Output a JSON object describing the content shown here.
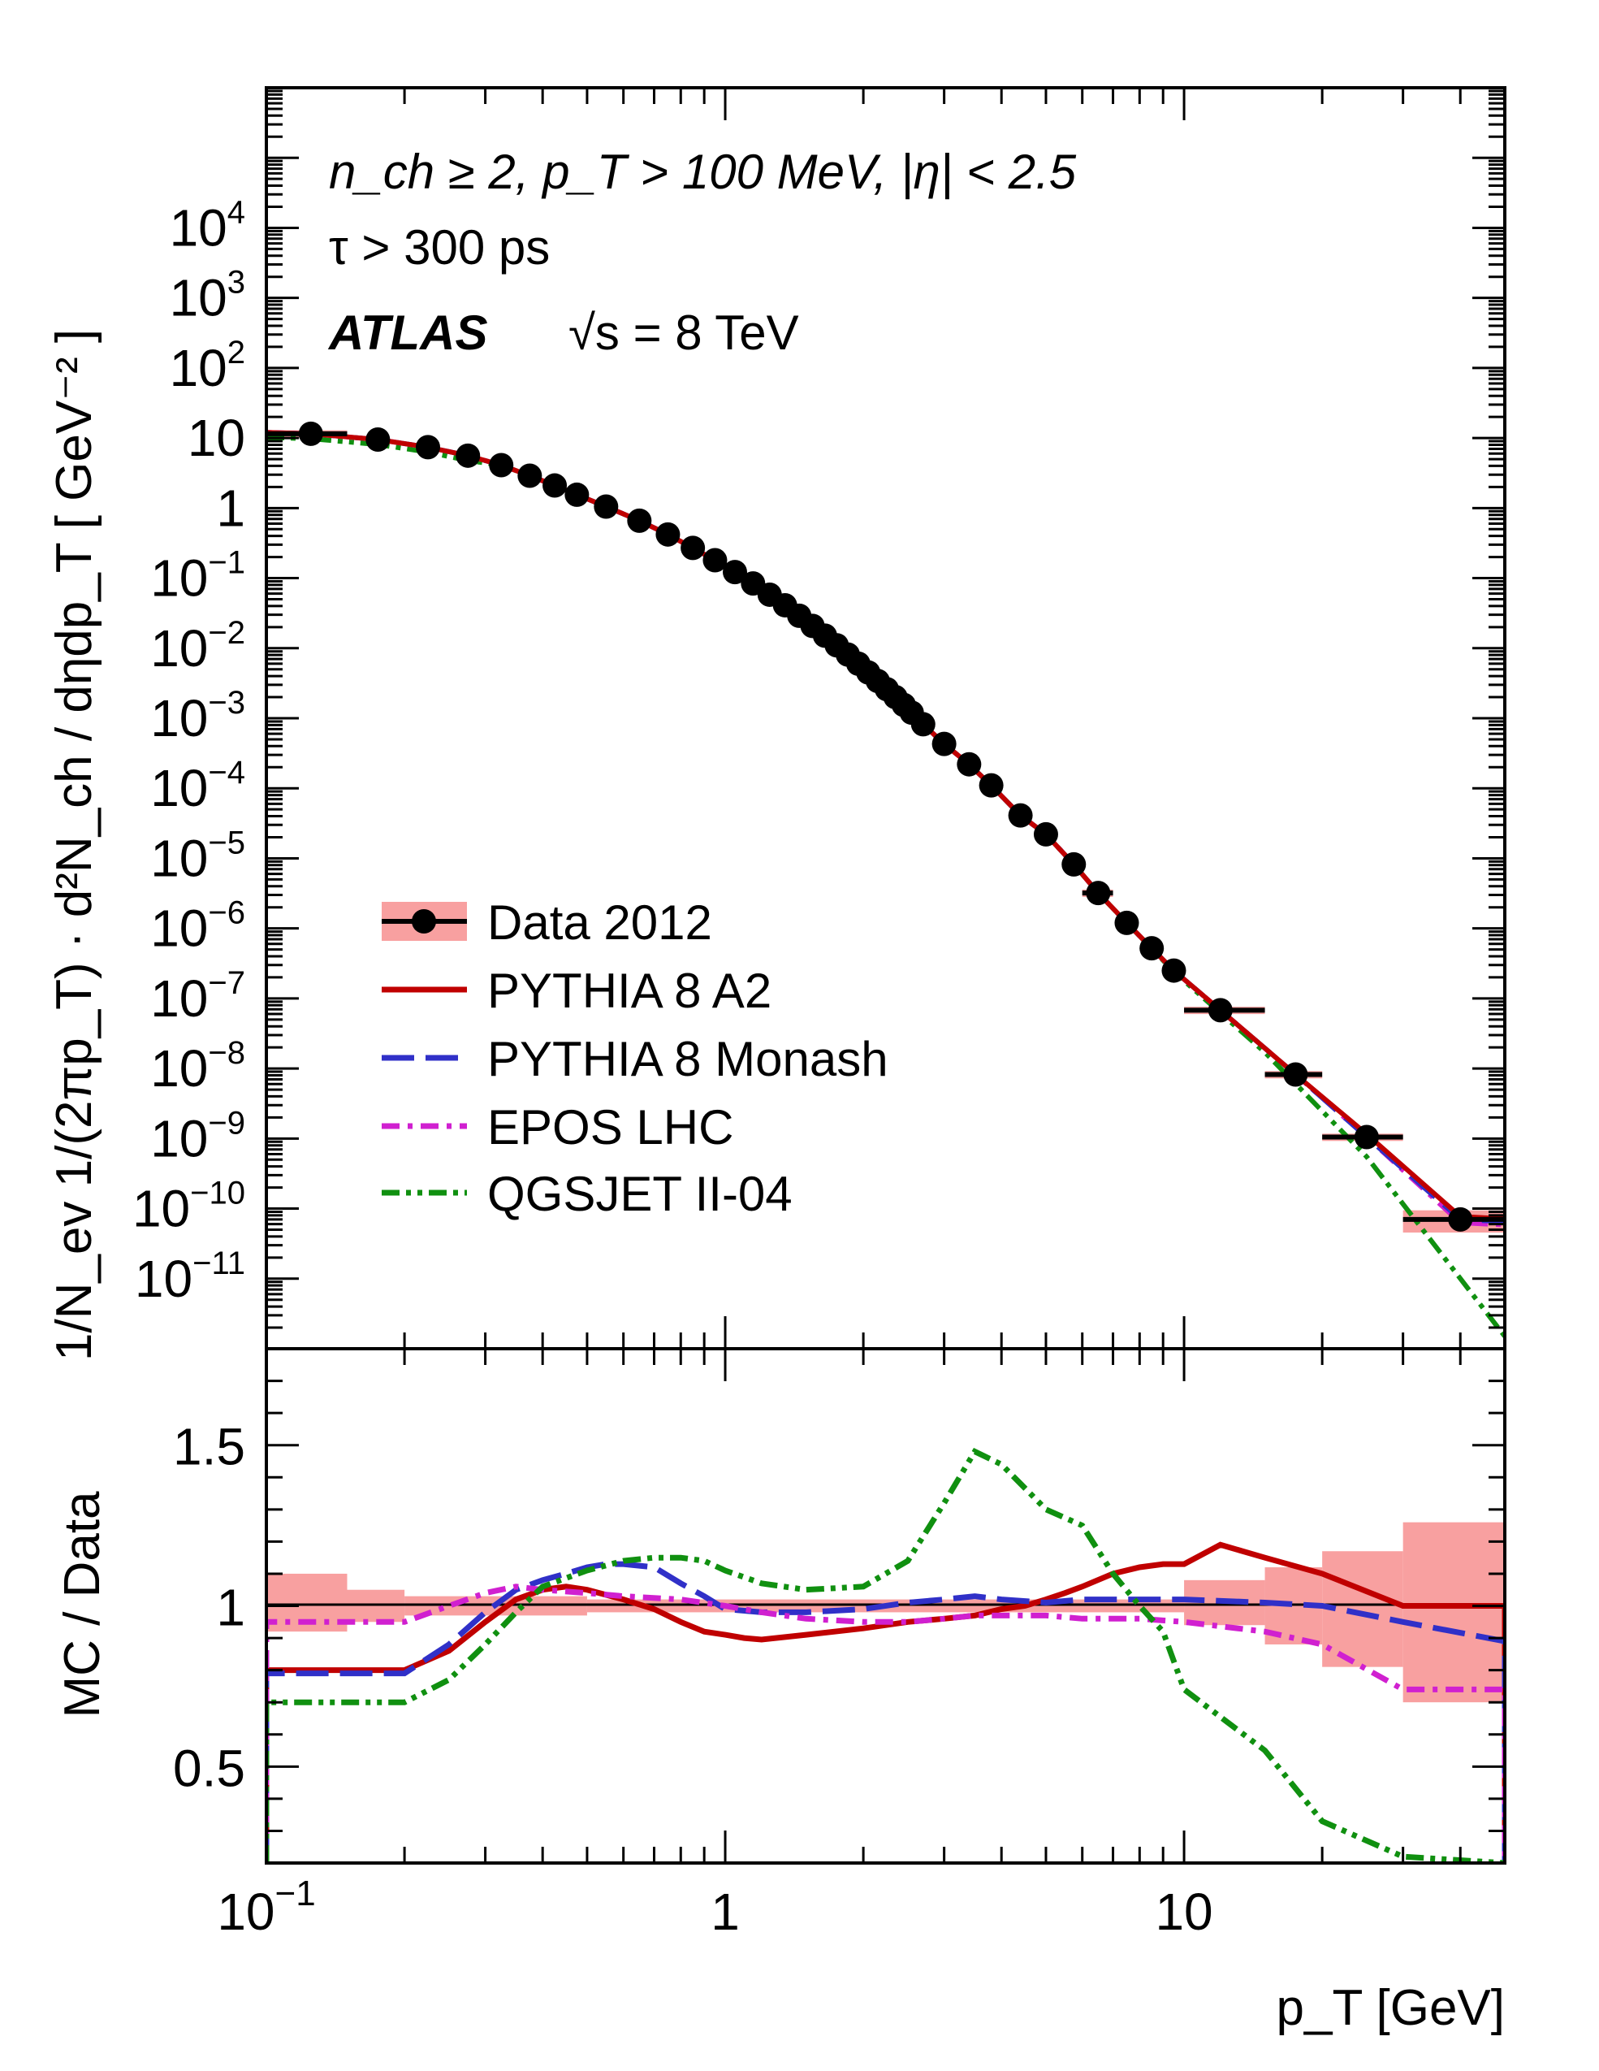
{
  "chart_data": [
    {
      "panel": "main",
      "type": "line",
      "x_scale": "log",
      "y_scale": "log",
      "xlim": [
        0.1,
        50
      ],
      "ylim": [
        1e-12,
        1000000.0
      ],
      "ylabel": "1/N_ev 1/(2πp_T) · d²N_ch / dηdp_T [ GeV⁻² ]",
      "annotations": {
        "line1": "n_ch ≥ 2, p_T > 100 MeV, |η| < 2.5",
        "line2": "τ > 300 ps",
        "experiment": "ATLAS",
        "energy": "√s = 8 TeV"
      },
      "y_tick_labels": [
        "10^4",
        "10^3",
        "10^2",
        "10",
        "1",
        "10^-1",
        "10^-2",
        "10^-3",
        "10^-4",
        "10^-5",
        "10^-6",
        "10^-7",
        "10^-8",
        "10^-9",
        "10^-10",
        "10^-11"
      ],
      "legend": [
        {
          "label": "Data 2012",
          "style": "marker-band",
          "color": "#000000",
          "band": "#f8a0a0"
        },
        {
          "label": "PYTHIA 8 A2",
          "style": "solid",
          "color": "#c00000"
        },
        {
          "label": "PYTHIA 8 Monash",
          "style": "long-dash",
          "color": "#3030c8"
        },
        {
          "label": "EPOS LHC",
          "style": "dash-dot",
          "color": "#d020d0"
        },
        {
          "label": "QGSJET II-04",
          "style": "dash-dot-dot",
          "color": "#109010"
        }
      ],
      "data_points": [
        {
          "x": 0.125,
          "y": 11.5,
          "xerr": [
            0.1,
            0.15
          ]
        },
        {
          "x": 0.175,
          "y": 9.5
        },
        {
          "x": 0.225,
          "y": 7.4
        },
        {
          "x": 0.275,
          "y": 5.6
        },
        {
          "x": 0.325,
          "y": 4.1
        },
        {
          "x": 0.375,
          "y": 2.9
        },
        {
          "x": 0.425,
          "y": 2.1
        },
        {
          "x": 0.475,
          "y": 1.55
        },
        {
          "x": 0.55,
          "y": 1.05
        },
        {
          "x": 0.65,
          "y": 0.66
        },
        {
          "x": 0.75,
          "y": 0.42
        },
        {
          "x": 0.85,
          "y": 0.27
        },
        {
          "x": 0.95,
          "y": 0.18
        },
        {
          "x": 1.05,
          "y": 0.122
        },
        {
          "x": 1.15,
          "y": 0.084
        },
        {
          "x": 1.25,
          "y": 0.058
        },
        {
          "x": 1.35,
          "y": 0.041
        },
        {
          "x": 1.45,
          "y": 0.029
        },
        {
          "x": 1.55,
          "y": 0.0208
        },
        {
          "x": 1.65,
          "y": 0.0151
        },
        {
          "x": 1.75,
          "y": 0.011
        },
        {
          "x": 1.85,
          "y": 0.0081
        },
        {
          "x": 1.95,
          "y": 0.006
        },
        {
          "x": 2.05,
          "y": 0.0045
        },
        {
          "x": 2.15,
          "y": 0.0034
        },
        {
          "x": 2.25,
          "y": 0.0026
        },
        {
          "x": 2.35,
          "y": 0.002
        },
        {
          "x": 2.45,
          "y": 0.00155
        },
        {
          "x": 2.55,
          "y": 0.0012
        },
        {
          "x": 2.7,
          "y": 0.00082
        },
        {
          "x": 3.0,
          "y": 0.00043
        },
        {
          "x": 3.4,
          "y": 0.00022
        },
        {
          "x": 3.8,
          "y": 0.00011
        },
        {
          "x": 4.4,
          "y": 4.1e-05
        },
        {
          "x": 5.0,
          "y": 2.2e-05
        },
        {
          "x": 5.75,
          "y": 8.2e-06,
          "xerr": [
            5.5,
            6.0
          ]
        },
        {
          "x": 6.5,
          "y": 3.2e-06,
          "xerr": [
            6.0,
            7.0
          ]
        },
        {
          "x": 7.5,
          "y": 1.2e-06
        },
        {
          "x": 8.5,
          "y": 5.2e-07
        },
        {
          "x": 9.5,
          "y": 2.5e-07
        },
        {
          "x": 12.0,
          "y": 6.8e-08,
          "xerr": [
            10.0,
            15.0
          ]
        },
        {
          "x": 17.5,
          "y": 8.2e-09,
          "xerr": [
            15.0,
            20.0
          ]
        },
        {
          "x": 25.0,
          "y": 1.05e-09,
          "xerr": [
            20.0,
            30.0
          ]
        },
        {
          "x": 40.0,
          "y": 7e-11,
          "xerr": [
            30.0,
            50.0
          ]
        }
      ],
      "qgsjet_tail": [
        {
          "x": 9.5,
          "y": 2.4e-07
        },
        {
          "x": 15.0,
          "y": 1.7e-08
        },
        {
          "x": 25.0,
          "y": 5.5e-10
        },
        {
          "x": 50.0,
          "y": 1.5e-12
        }
      ]
    },
    {
      "panel": "ratio",
      "type": "line",
      "x_scale": "log",
      "xlim": [
        0.1,
        50
      ],
      "ylim": [
        0.2,
        1.8
      ],
      "xlabel": "p_T [GeV]",
      "ylabel": "MC / Data",
      "y_tick_labels": [
        "0.5",
        "1",
        "1.5"
      ],
      "x_tick_labels": [
        "10^-1",
        "1",
        "10"
      ],
      "data_band": [
        {
          "x0": 0.1,
          "x1": 0.15,
          "lo": 0.92,
          "hi": 1.1
        },
        {
          "x0": 0.15,
          "x1": 0.2,
          "lo": 0.95,
          "hi": 1.05
        },
        {
          "x0": 0.2,
          "x1": 0.5,
          "lo": 0.97,
          "hi": 1.03
        },
        {
          "x0": 0.5,
          "x1": 10,
          "lo": 0.98,
          "hi": 1.02
        },
        {
          "x0": 10,
          "x1": 15,
          "lo": 0.94,
          "hi": 1.08
        },
        {
          "x0": 15,
          "x1": 20,
          "lo": 0.88,
          "hi": 1.12
        },
        {
          "x0": 20,
          "x1": 30,
          "lo": 0.81,
          "hi": 1.17
        },
        {
          "x0": 30,
          "x1": 50,
          "lo": 0.7,
          "hi": 1.26
        }
      ],
      "series": [
        {
          "name": "PYTHIA 8 A2",
          "color": "#c00000",
          "points": [
            [
              0.1,
              0.2
            ],
            [
              0.1,
              0.8
            ],
            [
              0.15,
              0.8
            ],
            [
              0.2,
              0.8
            ],
            [
              0.25,
              0.86
            ],
            [
              0.3,
              0.95
            ],
            [
              0.35,
              1.02
            ],
            [
              0.4,
              1.05
            ],
            [
              0.45,
              1.06
            ],
            [
              0.5,
              1.05
            ],
            [
              0.6,
              1.02
            ],
            [
              0.7,
              0.99
            ],
            [
              0.8,
              0.95
            ],
            [
              0.9,
              0.92
            ],
            [
              1.0,
              0.91
            ],
            [
              1.1,
              0.9
            ],
            [
              1.2,
              0.895
            ],
            [
              1.5,
              0.91
            ],
            [
              2.0,
              0.93
            ],
            [
              2.5,
              0.95
            ],
            [
              3.0,
              0.96
            ],
            [
              3.5,
              0.97
            ],
            [
              4.0,
              0.99
            ],
            [
              4.5,
              1.0
            ],
            [
              5.0,
              1.02
            ],
            [
              5.5,
              1.04
            ],
            [
              6.0,
              1.06
            ],
            [
              7.0,
              1.1
            ],
            [
              8.0,
              1.12
            ],
            [
              9.0,
              1.13
            ],
            [
              10.0,
              1.13
            ],
            [
              12.0,
              1.19
            ],
            [
              15.0,
              1.15
            ],
            [
              20.0,
              1.1
            ],
            [
              30.0,
              1.0
            ],
            [
              50.0,
              1.0
            ],
            [
              50.0,
              0.2
            ]
          ]
        },
        {
          "name": "PYTHIA 8 Monash",
          "color": "#3030c8",
          "points": [
            [
              0.1,
              0.2
            ],
            [
              0.1,
              0.79
            ],
            [
              0.15,
              0.79
            ],
            [
              0.2,
              0.79
            ],
            [
              0.25,
              0.88
            ],
            [
              0.3,
              0.98
            ],
            [
              0.35,
              1.05
            ],
            [
              0.4,
              1.08
            ],
            [
              0.45,
              1.1
            ],
            [
              0.5,
              1.12
            ],
            [
              0.55,
              1.13
            ],
            [
              0.6,
              1.13
            ],
            [
              0.7,
              1.12
            ],
            [
              0.8,
              1.07
            ],
            [
              0.9,
              1.03
            ],
            [
              1.0,
              0.99
            ],
            [
              1.2,
              0.98
            ],
            [
              1.5,
              0.98
            ],
            [
              2.0,
              0.99
            ],
            [
              2.5,
              1.01
            ],
            [
              3.0,
              1.02
            ],
            [
              3.5,
              1.03
            ],
            [
              4.0,
              1.02
            ],
            [
              5.0,
              1.01
            ],
            [
              6.0,
              1.02
            ],
            [
              8.0,
              1.02
            ],
            [
              10.0,
              1.02
            ],
            [
              15.0,
              1.01
            ],
            [
              20.0,
              1.0
            ],
            [
              30.0,
              0.95
            ],
            [
              50.0,
              0.89
            ],
            [
              50.0,
              0.2
            ]
          ]
        },
        {
          "name": "EPOS LHC",
          "color": "#d020d0",
          "points": [
            [
              0.1,
              0.2
            ],
            [
              0.1,
              0.95
            ],
            [
              0.15,
              0.95
            ],
            [
              0.2,
              0.95
            ],
            [
              0.25,
              1.0
            ],
            [
              0.3,
              1.04
            ],
            [
              0.35,
              1.06
            ],
            [
              0.4,
              1.05
            ],
            [
              0.5,
              1.04
            ],
            [
              0.6,
              1.03
            ],
            [
              0.8,
              1.02
            ],
            [
              1.0,
              1.0
            ],
            [
              1.2,
              0.98
            ],
            [
              1.5,
              0.96
            ],
            [
              2.0,
              0.95
            ],
            [
              2.5,
              0.95
            ],
            [
              3.0,
              0.96
            ],
            [
              3.5,
              0.97
            ],
            [
              4.0,
              0.97
            ],
            [
              5.0,
              0.97
            ],
            [
              6.0,
              0.96
            ],
            [
              8.0,
              0.96
            ],
            [
              10.0,
              0.95
            ],
            [
              15.0,
              0.92
            ],
            [
              20.0,
              0.88
            ],
            [
              30.0,
              0.74
            ],
            [
              50.0,
              0.74
            ],
            [
              50.0,
              0.2
            ]
          ]
        },
        {
          "name": "QGSJET II-04",
          "color": "#109010",
          "points": [
            [
              0.1,
              0.2
            ],
            [
              0.1,
              0.7
            ],
            [
              0.15,
              0.7
            ],
            [
              0.2,
              0.7
            ],
            [
              0.25,
              0.77
            ],
            [
              0.3,
              0.88
            ],
            [
              0.35,
              0.98
            ],
            [
              0.4,
              1.06
            ],
            [
              0.5,
              1.11
            ],
            [
              0.6,
              1.14
            ],
            [
              0.7,
              1.15
            ],
            [
              0.8,
              1.15
            ],
            [
              0.9,
              1.14
            ],
            [
              1.0,
              1.11
            ],
            [
              1.2,
              1.07
            ],
            [
              1.5,
              1.05
            ],
            [
              2.0,
              1.06
            ],
            [
              2.5,
              1.14
            ],
            [
              3.0,
              1.32
            ],
            [
              3.5,
              1.48
            ],
            [
              4.0,
              1.44
            ],
            [
              5.0,
              1.3
            ],
            [
              6.0,
              1.25
            ],
            [
              7.0,
              1.1
            ],
            [
              8.0,
              1.0
            ],
            [
              9.0,
              0.92
            ],
            [
              10.0,
              0.74
            ],
            [
              15.0,
              0.55
            ],
            [
              20.0,
              0.33
            ],
            [
              30.0,
              0.22
            ],
            [
              50.0,
              0.2
            ]
          ]
        }
      ]
    }
  ]
}
